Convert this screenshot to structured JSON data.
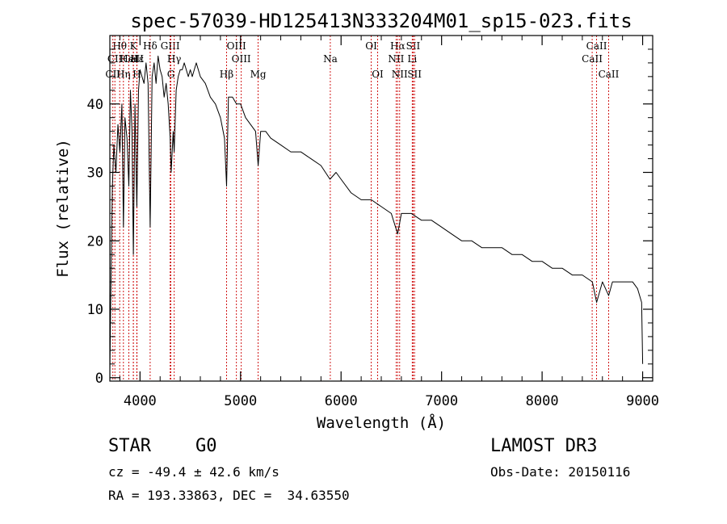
{
  "chart_data": {
    "type": "line",
    "title": "spec-57039-HD125413N333204M01_sp15-023.fits",
    "xlabel": "Wavelength (Å)",
    "ylabel": "Flux (relative)",
    "xlim": [
      3700,
      9100
    ],
    "ylim": [
      -0.5,
      50
    ],
    "xticks": [
      4000,
      5000,
      6000,
      7000,
      8000,
      9000
    ],
    "yticks": [
      0,
      10,
      20,
      30,
      40
    ],
    "grid": false,
    "series": [
      {
        "name": "spectrum",
        "x": [
          3700,
          3710,
          3725,
          3740,
          3760,
          3780,
          3800,
          3820,
          3835,
          3850,
          3870,
          3889,
          3905,
          3920,
          3934,
          3950,
          3968,
          3985,
          4000,
          4020,
          4040,
          4060,
          4080,
          4101,
          4120,
          4140,
          4160,
          4180,
          4200,
          4220,
          4240,
          4260,
          4280,
          4300,
          4310,
          4330,
          4340,
          4360,
          4380,
          4400,
          4420,
          4440,
          4460,
          4480,
          4500,
          4520,
          4540,
          4560,
          4580,
          4600,
          4650,
          4700,
          4750,
          4800,
          4840,
          4861,
          4880,
          4920,
          4960,
          5000,
          5050,
          5100,
          5150,
          5175,
          5200,
          5250,
          5300,
          5400,
          5500,
          5600,
          5700,
          5800,
          5890,
          5950,
          6000,
          6100,
          6200,
          6300,
          6400,
          6500,
          6563,
          6600,
          6700,
          6800,
          6900,
          7000,
          7100,
          7200,
          7300,
          7400,
          7500,
          7600,
          7700,
          7800,
          7900,
          8000,
          8100,
          8200,
          8300,
          8400,
          8500,
          8542,
          8600,
          8662,
          8700,
          8800,
          8900,
          8950,
          8990,
          9000
        ],
        "values": [
          1,
          12,
          28,
          34,
          30,
          37,
          33,
          40,
          22,
          38,
          35,
          28,
          42,
          36,
          18,
          40,
          25,
          42,
          45,
          44,
          43,
          46,
          43,
          22,
          44,
          46,
          43,
          47,
          45,
          44,
          41,
          43,
          40,
          35,
          30,
          36,
          33,
          42,
          44,
          45,
          45,
          46,
          45,
          44,
          45,
          44,
          45,
          46,
          45,
          44,
          43,
          41,
          40,
          38,
          35,
          28,
          41,
          41,
          40,
          40,
          38,
          37,
          36,
          31,
          36,
          36,
          35,
          34,
          33,
          33,
          32,
          31,
          29,
          30,
          29,
          27,
          26,
          26,
          25,
          24,
          21,
          24,
          24,
          23,
          23,
          22,
          21,
          20,
          20,
          19,
          19,
          19,
          18,
          18,
          17,
          17,
          16,
          16,
          15,
          15,
          14,
          11,
          14,
          12,
          14,
          14,
          14,
          13,
          11,
          2
        ]
      }
    ],
    "line_markers": [
      {
        "label": "Hθ",
        "x": 3798,
        "row": 1
      },
      {
        "label": "CaII",
        "x": 3934,
        "row": 2
      },
      {
        "label": "CII",
        "x": 3750,
        "row": 2
      },
      {
        "label": "CII",
        "x": 3730,
        "row": 3
      },
      {
        "label": "K",
        "x": 3934,
        "row": 1
      },
      {
        "label": "HeI",
        "x": 3889,
        "row": 2
      },
      {
        "label": "Hη",
        "x": 3835,
        "row": 3
      },
      {
        "label": "H",
        "x": 3968,
        "row": 3
      },
      {
        "label": "Hδ",
        "x": 4101,
        "row": 1
      },
      {
        "label": "Hε",
        "x": 3970,
        "row": 2
      },
      {
        "label": "GIII",
        "x": 4300,
        "row": 1
      },
      {
        "label": "Hγ",
        "x": 4340,
        "row": 2
      },
      {
        "label": "G",
        "x": 4307,
        "row": 3
      },
      {
        "label": "OIII",
        "x": 4959,
        "row": 1
      },
      {
        "label": "OIII",
        "x": 5007,
        "row": 2
      },
      {
        "label": "Hβ",
        "x": 4861,
        "row": 3
      },
      {
        "label": "Mg",
        "x": 5175,
        "row": 3
      },
      {
        "label": "Na",
        "x": 5893,
        "row": 2
      },
      {
        "label": "OI",
        "x": 6300,
        "row": 1
      },
      {
        "label": "OI",
        "x": 6364,
        "row": 3
      },
      {
        "label": "Hα",
        "x": 6563,
        "row": 1
      },
      {
        "label": "NII",
        "x": 6548,
        "row": 2
      },
      {
        "label": "NII",
        "x": 6583,
        "row": 3
      },
      {
        "label": "SII",
        "x": 6717,
        "row": 1
      },
      {
        "label": "Li",
        "x": 6708,
        "row": 2
      },
      {
        "label": "SII",
        "x": 6731,
        "row": 3
      },
      {
        "label": "CaII",
        "x": 8542,
        "row": 1
      },
      {
        "label": "CaII",
        "x": 8498,
        "row": 2
      },
      {
        "label": "CaII",
        "x": 8662,
        "row": 3
      }
    ]
  },
  "info": {
    "object_class": "STAR",
    "subclass": "G0",
    "survey": "LAMOST DR3",
    "cz": "cz = -49.4 ± 42.6 km/s",
    "obs_date": "Obs-Date: 20150116",
    "coords": "RA = 193.33863, DEC =  34.63550"
  },
  "colors": {
    "axis": "#000000",
    "spectrum": "#000000",
    "marker_line": "#cc0000"
  }
}
